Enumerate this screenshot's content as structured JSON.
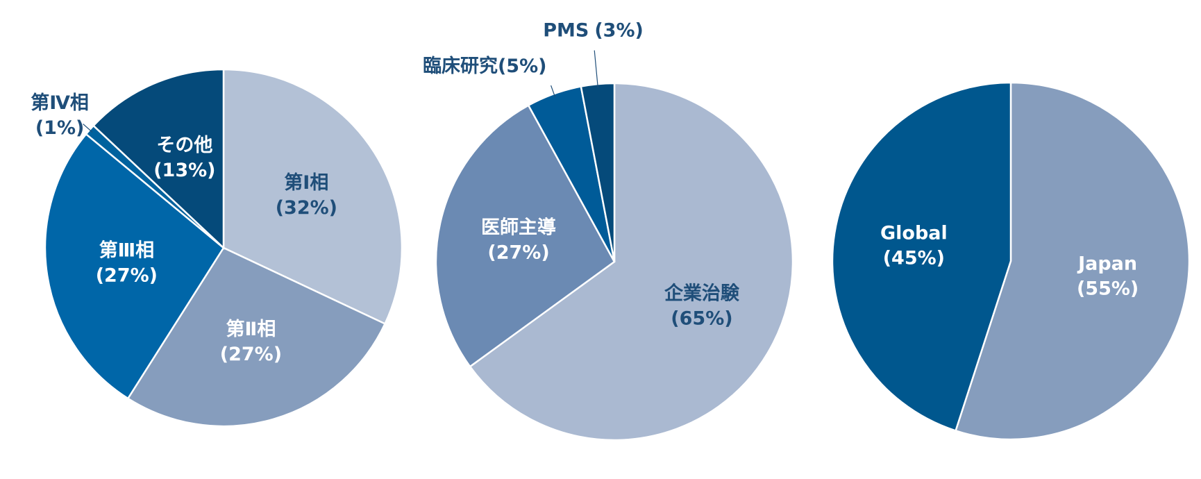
{
  "chart_data": [
    {
      "type": "pie",
      "categories": [
        "第Ⅰ相",
        "第Ⅱ相",
        "第Ⅲ相",
        "第Ⅳ相",
        "その他"
      ],
      "values": [
        32,
        27,
        27,
        1,
        13
      ],
      "value_labels": [
        "(32%)",
        "(27%)",
        "(27%)",
        "(1%)",
        "(13%)"
      ],
      "colors": [
        "#b3c1d6",
        "#869dbd",
        "#0066a8",
        "#00629e",
        "#054a7a"
      ]
    },
    {
      "type": "pie",
      "categories": [
        "企業治験",
        "医師主導",
        "臨床研究",
        "PMS"
      ],
      "values": [
        65,
        27,
        5,
        3
      ],
      "value_labels": [
        "(65%)",
        "(27%)",
        "(5%)",
        "(3%)"
      ],
      "colors": [
        "#aab9d1",
        "#6b8ab3",
        "#005b98",
        "#054a7a"
      ]
    },
    {
      "type": "pie",
      "categories": [
        "Japan",
        "Global"
      ],
      "values": [
        55,
        45
      ],
      "value_labels": [
        "(55%)",
        "(45%)"
      ],
      "colors": [
        "#869dbd",
        "#00578e"
      ]
    }
  ]
}
